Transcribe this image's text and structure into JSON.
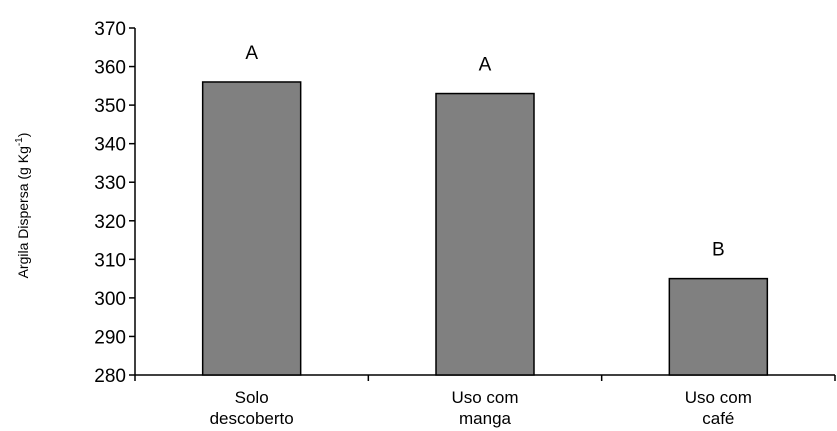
{
  "chart_data": {
    "type": "bar",
    "title": "",
    "xlabel": "",
    "ylabel": "Argila Dispersa (g Kg",
    "ylabel_superscript": "-1",
    "ylabel_suffix": ")",
    "ylim": [
      280,
      370
    ],
    "yticks": [
      280,
      290,
      300,
      310,
      320,
      330,
      340,
      350,
      360,
      370
    ],
    "categories": [
      [
        "Solo",
        "descoberto"
      ],
      [
        "Uso com",
        "manga"
      ],
      [
        "Uso com",
        "café"
      ]
    ],
    "values": [
      356,
      353,
      305
    ],
    "data_labels": [
      "A",
      "A",
      "B"
    ],
    "bar_color": "#808080",
    "bar_edge_color": "#000000",
    "grid": false,
    "legend": "none"
  }
}
